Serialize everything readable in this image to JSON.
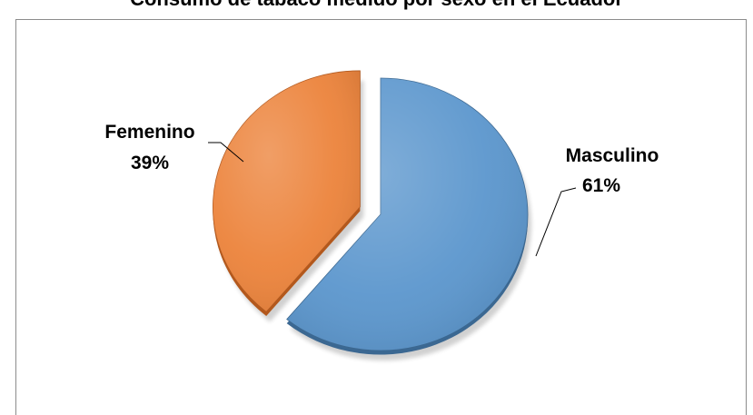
{
  "chart_data": {
    "type": "pie",
    "title": "Consumo de tabaco medido por sexo en el Ecuador",
    "slices": [
      {
        "name": "Masculino",
        "value": 61,
        "value_label": "61%",
        "color": "#5b96cd",
        "side_color": "#3b6892",
        "exploded": false
      },
      {
        "name": "Femenino",
        "value": 39,
        "value_label": "39%",
        "color": "#ec833b",
        "side_color": "#b3581c",
        "exploded": true
      }
    ],
    "start": "top",
    "direction": "clockwise",
    "labels": "outside-with-leader-lines",
    "legend": "none",
    "style": "3d-beveled"
  }
}
